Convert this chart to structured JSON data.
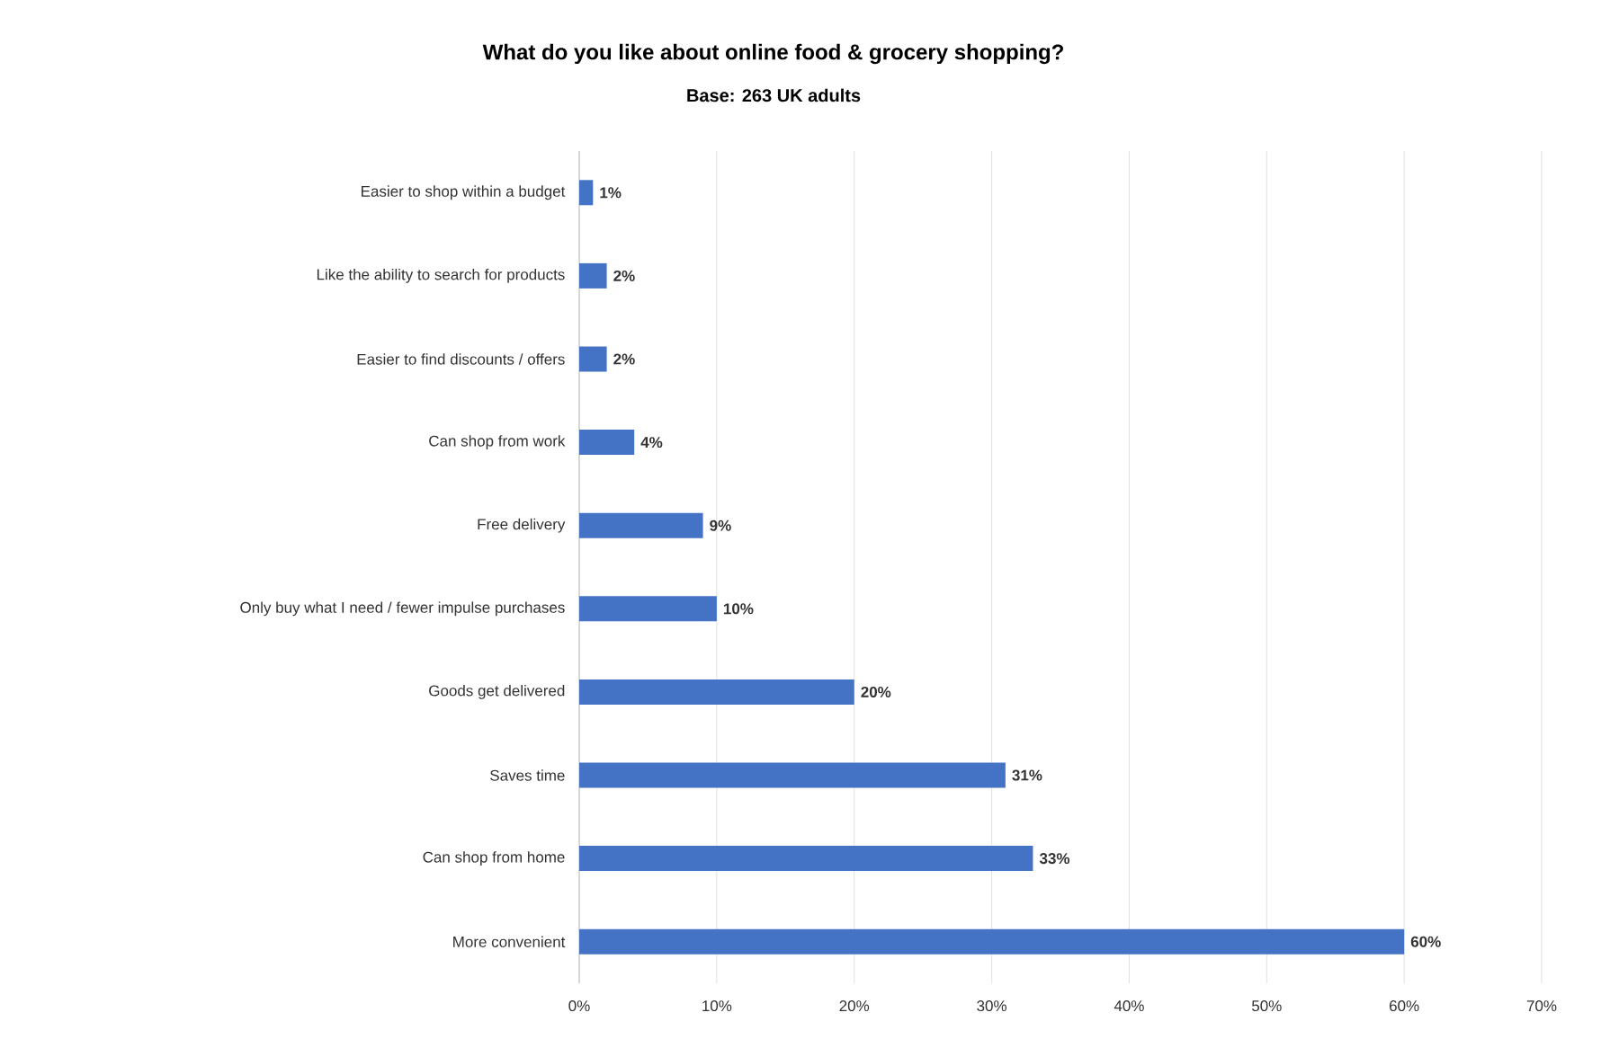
{
  "chart_data": {
    "type": "bar",
    "orientation": "horizontal",
    "title": "What do you like about online food & grocery shopping?",
    "subtitle": "Base: 263 UK adults",
    "categories": [
      "Easier to shop within a budget",
      "Like the ability to search for products",
      "Easier to find discounts / offers",
      "Can shop from work",
      "Free delivery",
      "Only buy what I need / fewer impulse purchases",
      "Goods get delivered",
      "Saves time",
      "Can shop from home",
      "More convenient"
    ],
    "values": [
      1,
      2,
      2,
      4,
      9,
      10,
      20,
      31,
      33,
      60
    ],
    "value_labels": [
      "1%",
      "2%",
      "2%",
      "4%",
      "9%",
      "10%",
      "20%",
      "31%",
      "33%",
      "60%"
    ],
    "color": "#4472c4",
    "xlim": [
      0,
      70
    ],
    "xticks": [
      {
        "value": 0,
        "label": "0%"
      },
      {
        "value": 10,
        "label": "10%"
      },
      {
        "value": 20,
        "label": "20%"
      },
      {
        "value": 30,
        "label": "30%"
      },
      {
        "value": 40,
        "label": "40%"
      },
      {
        "value": 50,
        "label": "50%"
      },
      {
        "value": 60,
        "label": "60%"
      },
      {
        "value": 70,
        "label": "70%"
      }
    ],
    "grid": "x"
  }
}
